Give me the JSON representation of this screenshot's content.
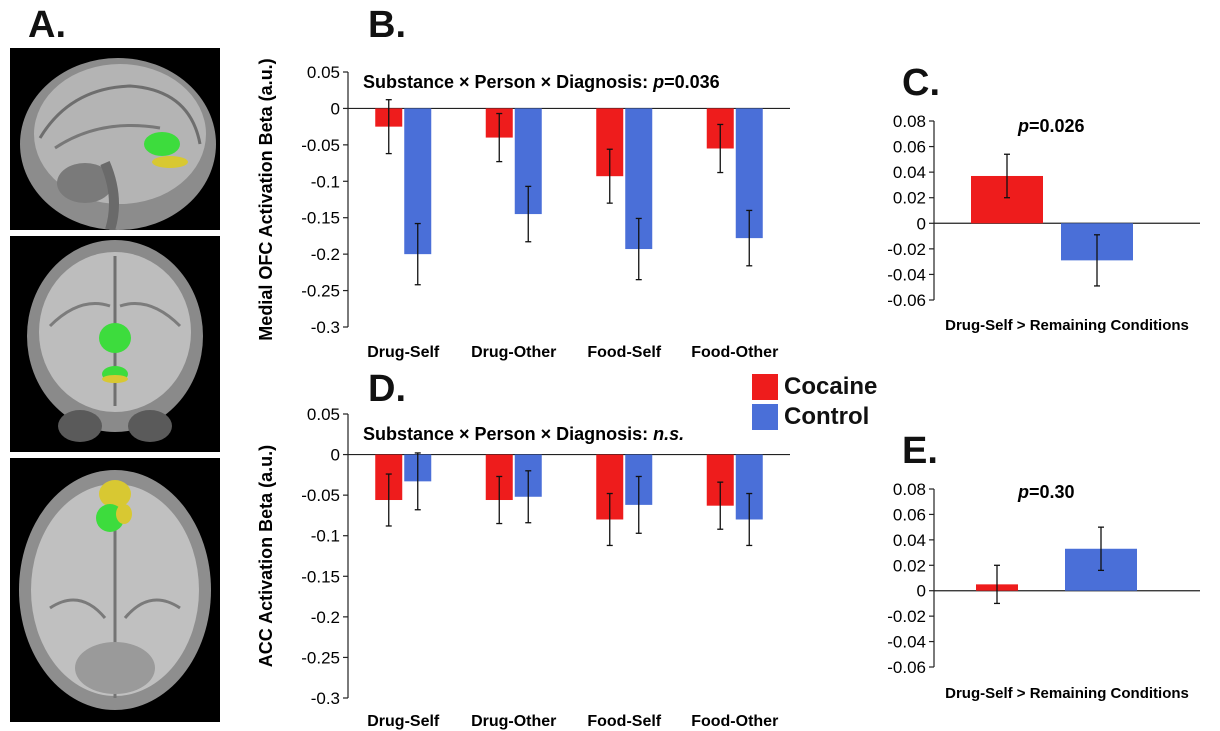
{
  "panels": {
    "a": "A.",
    "b": "B.",
    "c": "C.",
    "d": "D.",
    "e": "E."
  },
  "brain_images": [
    {
      "view": "sagittal",
      "regions": [
        "green",
        "yellow"
      ]
    },
    {
      "view": "coronal",
      "regions": [
        "green",
        "yellow"
      ]
    },
    {
      "view": "axial",
      "regions": [
        "yellow",
        "green"
      ]
    }
  ],
  "colors": {
    "cocaine": "#ee1c1c",
    "control": "#4a6fd8",
    "region_green": "#3ddc3d",
    "region_yellow": "#d8c832"
  },
  "legend": [
    {
      "label": "Cocaine",
      "color": "#ee1c1c"
    },
    {
      "label": "Control",
      "color": "#4a6fd8"
    }
  ],
  "chart_data": [
    {
      "panel": "B",
      "type": "bar",
      "title": "Substance × Person × Diagnosis: p=0.036",
      "title_parts": [
        "Substance × Person × Diagnosis: ",
        "p",
        "=0.036"
      ],
      "ylabel": "Medial OFC Activation Beta (a.u.)",
      "ylim": [
        -0.3,
        0.05
      ],
      "yticks": [
        0.05,
        0,
        -0.05,
        -0.1,
        -0.15,
        -0.2,
        -0.25,
        -0.3
      ],
      "yticklabels": [
        "0.05",
        "0",
        "-0.05",
        "-0.1",
        "-0.15",
        "-0.2",
        "-0.25",
        "-0.3"
      ],
      "categories": [
        "Drug-Self",
        "Drug-Other",
        "Food-Self",
        "Food-Other"
      ],
      "series": [
        {
          "name": "Cocaine",
          "values": [
            -0.025,
            -0.04,
            -0.093,
            -0.055
          ],
          "errors": [
            0.037,
            0.033,
            0.037,
            0.033
          ]
        },
        {
          "name": "Control",
          "values": [
            -0.2,
            -0.145,
            -0.193,
            -0.178
          ],
          "errors": [
            0.042,
            0.038,
            0.042,
            0.038
          ]
        }
      ]
    },
    {
      "panel": "C",
      "type": "bar",
      "title": "p=0.026",
      "title_parts": [
        "",
        "p",
        "=0.026"
      ],
      "xlabel": "Drug-Self > Remaining Conditions",
      "ylim": [
        -0.06,
        0.08
      ],
      "yticks": [
        0.08,
        0.06,
        0.04,
        0.02,
        0,
        -0.02,
        -0.04,
        -0.06
      ],
      "yticklabels": [
        "0.08",
        "0.06",
        "0.04",
        "0.02",
        "0",
        "-0.02",
        "-0.04",
        "-0.06"
      ],
      "categories": [
        "Drug-Self > Remaining Conditions"
      ],
      "series": [
        {
          "name": "Cocaine",
          "values": [
            0.037
          ],
          "errors": [
            0.017
          ]
        },
        {
          "name": "Control",
          "values": [
            -0.029
          ],
          "errors": [
            0.02
          ]
        }
      ]
    },
    {
      "panel": "D",
      "type": "bar",
      "title": "Substance × Person × Diagnosis: n.s.",
      "title_parts": [
        "Substance × Person × Diagnosis: ",
        "n.s.",
        ""
      ],
      "ylabel": "ACC Activation Beta (a.u.)",
      "ylim": [
        -0.3,
        0.05
      ],
      "yticks": [
        0.05,
        0,
        -0.05,
        -0.1,
        -0.15,
        -0.2,
        -0.25,
        -0.3
      ],
      "yticklabels": [
        "0.05",
        "0",
        "-0.05",
        "-0.1",
        "-0.15",
        "-0.2",
        "-0.25",
        "-0.3"
      ],
      "categories": [
        "Drug-Self",
        "Drug-Other",
        "Food-Self",
        "Food-Other"
      ],
      "series": [
        {
          "name": "Cocaine",
          "values": [
            -0.056,
            -0.056,
            -0.08,
            -0.063
          ],
          "errors": [
            0.032,
            0.029,
            0.032,
            0.029
          ]
        },
        {
          "name": "Control",
          "values": [
            -0.033,
            -0.052,
            -0.062,
            -0.08
          ],
          "errors": [
            0.035,
            0.032,
            0.035,
            0.032
          ]
        }
      ]
    },
    {
      "panel": "E",
      "type": "bar",
      "title": "p=0.30",
      "title_parts": [
        "",
        "p",
        "=0.30"
      ],
      "xlabel": "Drug-Self > Remaining Conditions",
      "ylim": [
        -0.06,
        0.08
      ],
      "yticks": [
        0.08,
        0.06,
        0.04,
        0.02,
        0,
        -0.02,
        -0.04,
        -0.06
      ],
      "yticklabels": [
        "0.08",
        "0.06",
        "0.04",
        "0.02",
        "0",
        "-0.02",
        "-0.04",
        "-0.06"
      ],
      "categories": [
        "Drug-Self > Remaining Conditions"
      ],
      "series": [
        {
          "name": "Cocaine",
          "values": [
            0.005
          ],
          "errors": [
            0.015
          ]
        },
        {
          "name": "Control",
          "values": [
            0.033
          ],
          "errors": [
            0.017
          ]
        }
      ]
    }
  ]
}
